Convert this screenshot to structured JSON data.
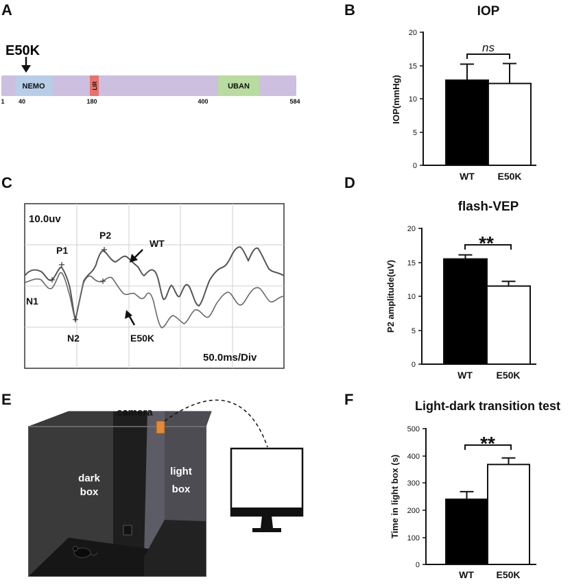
{
  "panels": {
    "A": {
      "letter": "A",
      "mutation_label": "E50K",
      "domains": [
        {
          "name": "NEMO",
          "color": "#b7cde8"
        },
        {
          "name": "LIR",
          "color": "#e8736a"
        },
        {
          "name": "UBAN",
          "color": "#b8dca0"
        }
      ],
      "protein_color": "#cdbfe0",
      "positions": [
        "1",
        "40",
        "180",
        "400",
        "584"
      ]
    },
    "B": {
      "letter": "B",
      "title": "IOP",
      "ylabel": "IOP(mmHg)",
      "significance": "ns",
      "categories": [
        "WT",
        "E50K"
      ],
      "yticks": [
        "0",
        "5",
        "10",
        "15",
        "20"
      ]
    },
    "C": {
      "letter": "C",
      "scale_label": "10.0uv",
      "time_label": "50.0ms/Div",
      "peaks": [
        "P1",
        "P2",
        "N1",
        "N2"
      ],
      "trace_labels": [
        "WT",
        "E50K"
      ]
    },
    "D": {
      "letter": "D",
      "title": "flash-VEP",
      "ylabel": "P2 amplitude(uV)",
      "significance": "**",
      "categories": [
        "WT",
        "E50K"
      ],
      "yticks": [
        "0",
        "5",
        "10",
        "15",
        "20"
      ]
    },
    "E": {
      "letter": "E",
      "camera_label": "camera",
      "dark_box_label": [
        "dark",
        "box"
      ],
      "light_box_label": [
        "light",
        "box"
      ]
    },
    "F": {
      "letter": "F",
      "title": "Light-dark transition test",
      "ylabel": "Time in light box (s)",
      "significance": "**",
      "categories": [
        "WT",
        "E50K"
      ],
      "yticks": [
        "0",
        "100",
        "200",
        "300",
        "400",
        "500"
      ]
    }
  },
  "chart_data": [
    {
      "type": "bar",
      "title": "IOP",
      "categories": [
        "WT",
        "E50K"
      ],
      "values": [
        12.8,
        12.3
      ],
      "errors": [
        2.4,
        3.0
      ],
      "fills": [
        "#000000",
        "#ffffff"
      ],
      "ylabel": "IOP(mmHg)",
      "ylim": [
        0,
        20
      ],
      "significance": "ns"
    },
    {
      "type": "bar",
      "title": "flash-VEP",
      "categories": [
        "WT",
        "E50K"
      ],
      "values": [
        15.5,
        11.5
      ],
      "errors": [
        0.6,
        0.7
      ],
      "fills": [
        "#000000",
        "#ffffff"
      ],
      "ylabel": "P2 amplitude(uV)",
      "ylim": [
        0,
        20
      ],
      "significance": "**"
    },
    {
      "type": "bar",
      "title": "Light-dark transition test",
      "categories": [
        "WT",
        "E50K"
      ],
      "values": [
        240,
        368
      ],
      "errors": [
        28,
        24
      ],
      "fills": [
        "#000000",
        "#ffffff"
      ],
      "ylabel": "Time in light box (s)",
      "ylim": [
        0,
        500
      ],
      "significance": "**"
    }
  ]
}
